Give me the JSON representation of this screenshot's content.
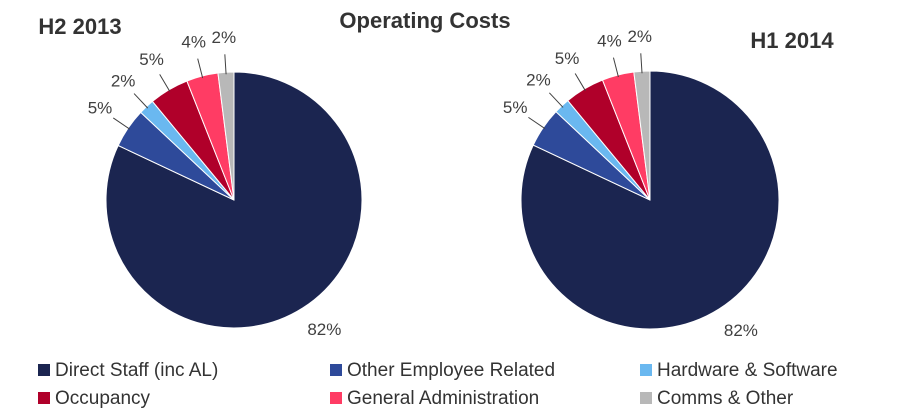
{
  "title": "Operating Costs",
  "categories": [
    "Direct Staff (inc AL)",
    "Other Employee Related",
    "Hardware & Software",
    "Occupancy",
    "General Administration",
    "Comms & Other"
  ],
  "colors": [
    "#1b2550",
    "#2e4a9a",
    "#6ab8f0",
    "#b0002a",
    "#ff3c64",
    "#b8b8b8"
  ],
  "chart_data": [
    {
      "type": "pie",
      "title": "H2 2013",
      "values": [
        82,
        5,
        2,
        5,
        4,
        2
      ],
      "value_labels": [
        "82%",
        "5%",
        "2%",
        "5%",
        "4%",
        "2%"
      ]
    },
    {
      "type": "pie",
      "title": "H1 2014",
      "values": [
        82,
        5,
        2,
        5,
        4,
        2
      ],
      "value_labels": [
        "82%",
        "5%",
        "2%",
        "5%",
        "4%",
        "2%"
      ]
    }
  ]
}
